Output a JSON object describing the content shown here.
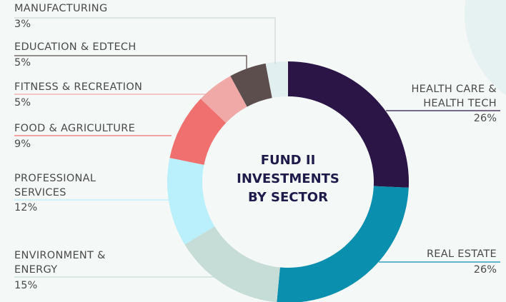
{
  "chart_data": {
    "type": "donut",
    "title": "FUND II\nINVESTMENTS\nBY SECTOR",
    "categories": [
      "HEALTH CARE &\nHEALTH TECH",
      "REAL ESTATE",
      "ENVIRONMENT &\nENERGY",
      "PROFESSIONAL\nSERVICES",
      "FOOD & AGRICULTURE",
      "FITNESS & RECREATION",
      "EDUCATION & EDTECH",
      "MANUFACTURING"
    ],
    "values": [
      26,
      26,
      15,
      12,
      9,
      5,
      5,
      3
    ],
    "value_labels": [
      "26%",
      "26%",
      "15%",
      "12%",
      "9%",
      "5%",
      "5%",
      "3%"
    ],
    "colors": [
      "#2a1546",
      "#0a8fae",
      "#c5ddd6",
      "#b9f0fb",
      "#f07070",
      "#f0a9a6",
      "#5c4e4c",
      "#e2eff0"
    ]
  }
}
